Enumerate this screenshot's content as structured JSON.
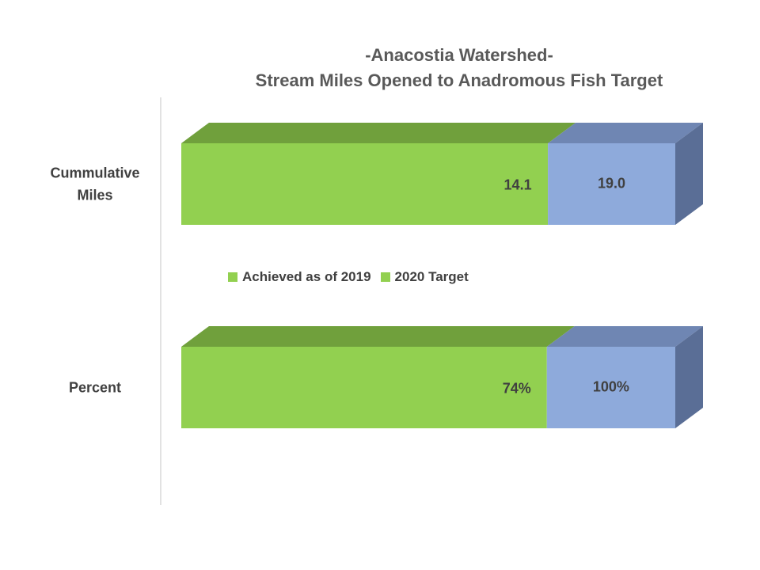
{
  "title": {
    "line1": "-Anacostia Watershed-",
    "line2": "Stream Miles Opened to Anadromous Fish Target"
  },
  "legend": [
    {
      "label": "Achieved as of 2019",
      "color": "#92d050"
    },
    {
      "label": "2020 Target",
      "color": "#92d050"
    }
  ],
  "colors": {
    "achieved_front": "#92d050",
    "achieved_top": "#70a03c",
    "target_front": "#8eaadb",
    "target_top": "#6f86b3",
    "target_side": "#5a6e96",
    "axis_line": "#d9d9d9",
    "label_text": "#404040"
  },
  "chart_data": {
    "type": "bar",
    "orientation": "horizontal",
    "style": "3d-stacked",
    "categories": [
      "Cummulative Miles",
      "Percent"
    ],
    "series": [
      {
        "name": "Achieved as of 2019",
        "values": [
          14.1,
          74
        ],
        "labels": [
          "14.1",
          "74%"
        ]
      },
      {
        "name": "2020 Target",
        "values": [
          19.0,
          100
        ],
        "labels": [
          "19.0",
          "100%"
        ]
      }
    ],
    "legend_position": "center",
    "grid": false
  }
}
